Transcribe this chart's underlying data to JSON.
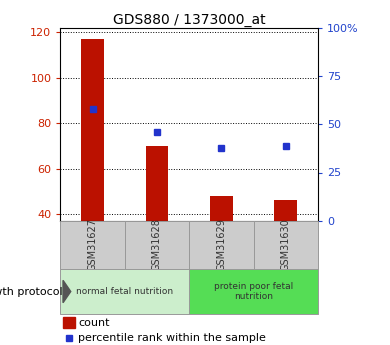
{
  "title": "GDS880 / 1373000_at",
  "samples": [
    "GSM31627",
    "GSM31628",
    "GSM31629",
    "GSM31630"
  ],
  "count_values": [
    117,
    70,
    48,
    46
  ],
  "percentile_values": [
    86,
    76,
    69,
    70
  ],
  "ylim_left": [
    37,
    122
  ],
  "ylim_right": [
    0,
    100
  ],
  "yticks_left": [
    40,
    60,
    80,
    100,
    120
  ],
  "yticks_right": [
    0,
    25,
    50,
    75,
    100
  ],
  "yticklabels_right": [
    "0",
    "25",
    "50",
    "75",
    "100%"
  ],
  "groups": [
    {
      "label": "normal fetal nutrition",
      "samples_idx": [
        0,
        1
      ],
      "color": "#cceecc"
    },
    {
      "label": "protein poor fetal\nnutrition",
      "samples_idx": [
        2,
        3
      ],
      "color": "#55dd55"
    }
  ],
  "group_label": "growth protocol",
  "bar_color": "#bb1100",
  "dot_color": "#2233cc",
  "bar_width": 0.35,
  "tick_label_color_left": "#cc2200",
  "tick_label_color_right": "#2244cc",
  "sample_box_color": "#cccccc",
  "legend_count_color": "#bb1100",
  "legend_pct_color": "#2233cc"
}
